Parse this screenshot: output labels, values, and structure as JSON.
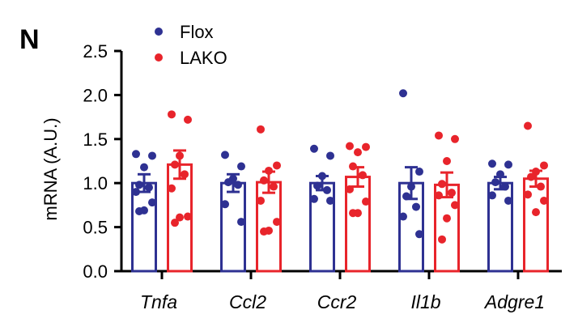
{
  "panel_label": "N",
  "chart_data": {
    "type": "bar",
    "categories": [
      "Tnfa",
      "Ccl2",
      "Ccr2",
      "Il1b",
      "Adgre1"
    ],
    "ylabel": "mRNA (A.U.)",
    "ylim": [
      0,
      2.5
    ],
    "yticks": [
      "0.0",
      "0.5",
      "1.0",
      "1.5",
      "2.0",
      "2.5"
    ],
    "legend_position": "top-left",
    "series": [
      {
        "name": "Flox",
        "color": "#2e3192",
        "values": [
          1.0,
          1.0,
          1.0,
          1.0,
          1.0
        ],
        "sem": [
          0.1,
          0.1,
          0.08,
          0.18,
          0.07
        ],
        "points": [
          [
            1.33,
            1.31,
            1.18,
            0.98,
            0.95,
            0.9,
            0.78,
            0.69,
            0.68
          ],
          [
            1.32,
            1.19,
            1.05,
            1.01,
            0.98,
            0.76,
            0.56
          ],
          [
            1.39,
            1.31,
            1.08,
            0.97,
            0.92,
            0.82,
            0.8
          ],
          [
            2.02,
            1.13,
            0.96,
            0.85,
            0.73,
            0.62,
            0.42
          ],
          [
            1.22,
            1.21,
            1.1,
            1.01,
            0.96,
            0.86,
            0.8
          ]
        ]
      },
      {
        "name": "LAKO",
        "color": "#e8242b",
        "values": [
          1.21,
          1.01,
          1.07,
          0.98,
          1.05
        ],
        "sem": [
          0.16,
          0.12,
          0.11,
          0.14,
          0.09
        ],
        "points": [
          [
            1.78,
            1.72,
            1.31,
            1.21,
            1.1,
            0.94,
            0.62,
            0.61,
            0.55
          ],
          [
            1.61,
            1.2,
            1.14,
            1.03,
            0.96,
            0.8,
            0.56,
            0.46,
            0.45
          ],
          [
            1.42,
            1.41,
            1.35,
            1.19,
            1.09,
            0.93,
            0.79,
            0.66,
            0.66
          ],
          [
            1.54,
            1.5,
            1.25,
            0.99,
            0.89,
            0.86,
            0.75,
            0.6,
            0.36
          ],
          [
            1.65,
            1.2,
            1.13,
            1.07,
            0.96,
            0.87,
            0.8,
            0.67
          ]
        ]
      }
    ]
  }
}
